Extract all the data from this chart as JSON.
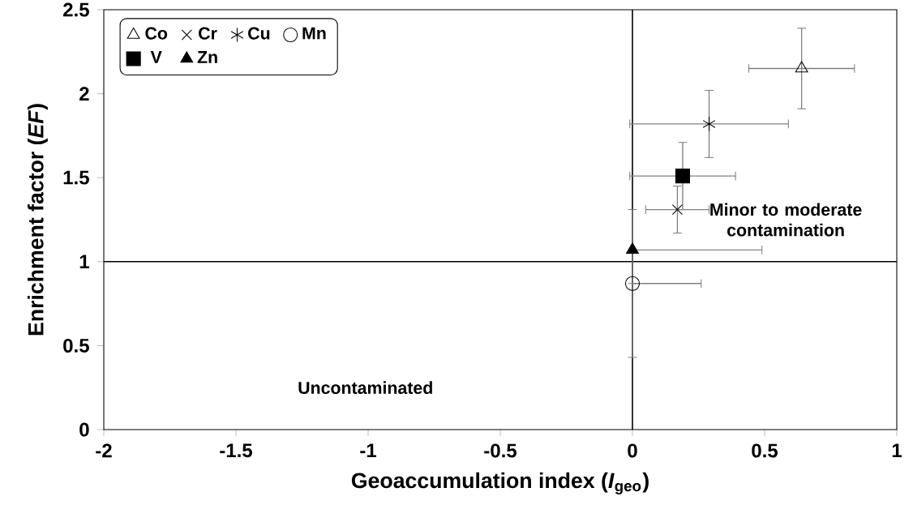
{
  "chart_data": {
    "type": "scatter",
    "xlabel": "Geoaccumulation index (*I*$_{geo}$)",
    "ylabel": "Enrichment factor (*EF*)",
    "xlim": [
      -2,
      1
    ],
    "xticks": [
      -2,
      -1.5,
      -1,
      -0.5,
      0,
      0.5,
      1
    ],
    "ylim": [
      0,
      2.5
    ],
    "yticks": [
      0,
      0.5,
      1,
      1.5,
      2,
      2.5
    ],
    "grid": false,
    "legend": "top left",
    "series": [
      {
        "name": "Co",
        "color": "#000000",
        "marker": "triangle",
        "x": [
          0.64
        ],
        "values": [
          2.15
        ],
        "xerrors": [
          0.2
        ],
        "errors": [
          0.24
        ]
      },
      {
        "name": "Cr",
        "color": "#000000",
        "marker": "cross",
        "x": [
          0.17
        ],
        "values": [
          1.31
        ],
        "xerrors": [
          0.12
        ],
        "errors": [
          0.14
        ]
      },
      {
        "name": "Cu",
        "color": "#000000",
        "x": [
          0.29
        ],
        "values": [
          1.82
        ],
        "xerrors": [
          0.3
        ],
        "errors": [
          0.2
        ]
      },
      {
        "name": "Mn",
        "color": "#000000",
        "marker": "circle",
        "x": [
          0
        ],
        "values": [
          0.87
        ],
        "xerrors": [
          [
            0,
            0.26
          ]
        ],
        "errors": [
          0.44
        ]
      },
      {
        "name": "V",
        "color": "#000000",
        "marker": "square",
        "x": [
          0.19
        ],
        "values": [
          1.51
        ],
        "xerrors": [
          0.2
        ],
        "errors": [
          0.2
        ]
      },
      {
        "name": "Zn",
        "color": "#000000",
        "marker": "triangle",
        "x": [
          0
        ],
        "values": [
          1.07
        ],
        "xerrors": [
          [
            0,
            0.49
          ]
        ],
        "errors": [
          null
        ]
      }
    ],
    "ref_lines": [
      {
        "axis": "x",
        "value": 0,
        "color": "#000000"
      },
      {
        "axis": "y",
        "value": 1,
        "color": "#000000"
      }
    ],
    "annotations": [
      "Minor to moderate contamination",
      "Uncontaminated"
    ]
  }
}
